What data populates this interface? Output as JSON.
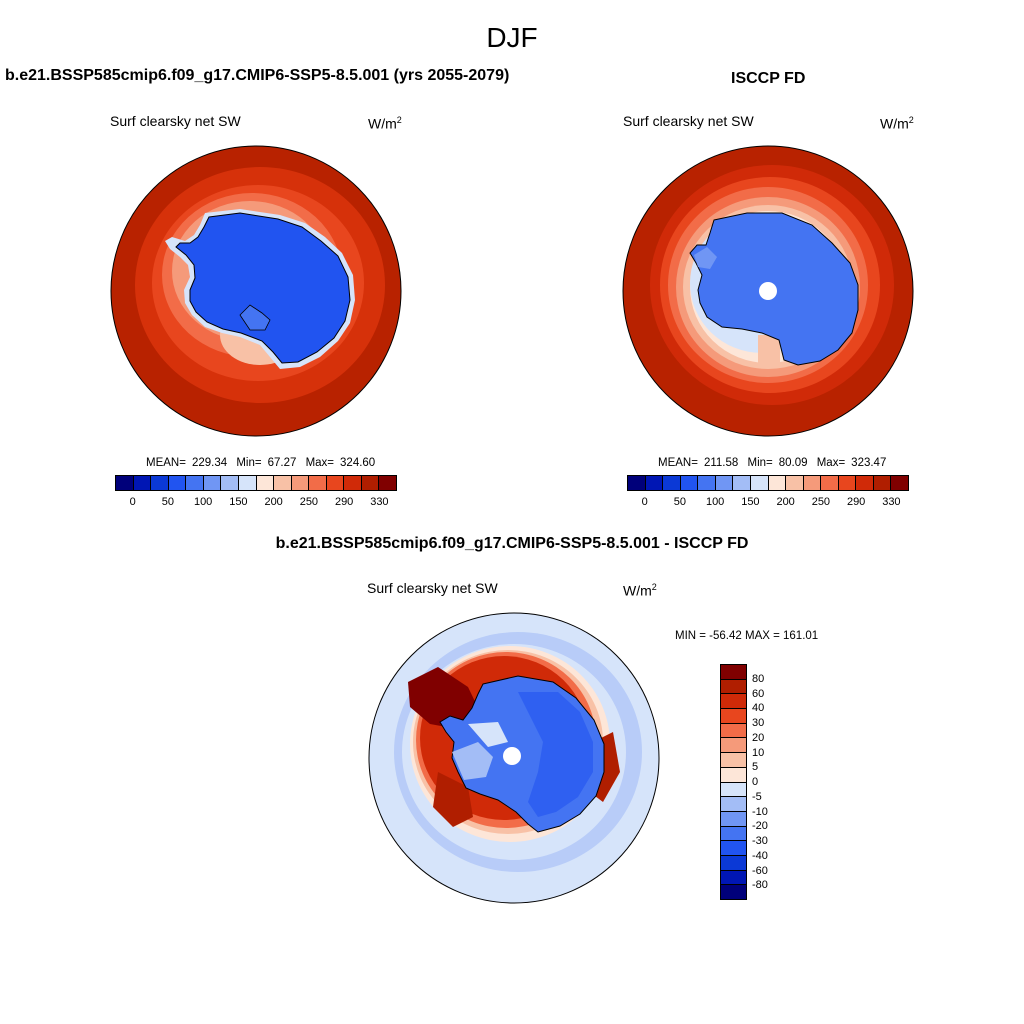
{
  "figure": {
    "season_title": "DJF"
  },
  "panels": [
    {
      "title": "b.e21.BSSP585cmip6.f09_g17.CMIP6-SSP5-8.5.001 (yrs 2055-2079)",
      "variable": "Surf clearsky net SW",
      "units_base": "W/m",
      "units_exp": "2",
      "stats": {
        "mean_label": "MEAN=",
        "mean": "229.34",
        "min_label": "Min=",
        "min": "67.27",
        "max_label": "Max=",
        "max": "324.60"
      }
    },
    {
      "title": "ISCCP FD",
      "variable": "Surf clearsky net SW",
      "units_base": "W/m",
      "units_exp": "2",
      "stats": {
        "mean_label": "MEAN=",
        "mean": "211.58",
        "min_label": "Min=",
        "min": "80.09",
        "max_label": "Max=",
        "max": "323.47"
      }
    },
    {
      "title": "b.e21.BSSP585cmip6.f09_g17.CMIP6-SSP5-8.5.001 - ISCCP FD",
      "variable": "Surf clearsky net SW",
      "units_base": "W/m",
      "units_exp": "2",
      "stats_text": "MIN = -56.42  MAX = 161.01"
    }
  ],
  "chart_data": [
    {
      "type": "heatmap",
      "projection": "south-polar-stereographic",
      "title": "b.e21.BSSP585cmip6.f09_g17.CMIP6-SSP5-8.5.001 (yrs 2055-2079)",
      "variable": "Surf clearsky net SW",
      "units": "W/m2",
      "mean": 229.34,
      "min": 67.27,
      "max": 324.6,
      "colorbar_ticks": [
        0,
        50,
        100,
        150,
        200,
        250,
        290,
        330
      ]
    },
    {
      "type": "heatmap",
      "projection": "south-polar-stereographic",
      "title": "ISCCP FD",
      "variable": "Surf clearsky net SW",
      "units": "W/m2",
      "mean": 211.58,
      "min": 80.09,
      "max": 323.47,
      "colorbar_ticks": [
        0,
        50,
        100,
        150,
        200,
        250,
        290,
        330
      ]
    },
    {
      "type": "heatmap",
      "projection": "south-polar-stereographic",
      "title": "b.e21.BSSP585cmip6.f09_g17.CMIP6-SSP5-8.5.001 - ISCCP FD",
      "variable": "Surf clearsky net SW",
      "units": "W/m2",
      "min": -56.42,
      "max": 161.01,
      "colorbar_levels": [
        80,
        60,
        40,
        30,
        20,
        10,
        5,
        0,
        -5,
        -10,
        -20,
        -30,
        -40,
        -60,
        -80
      ]
    }
  ],
  "colormap": [
    "#00007a",
    "#0016b4",
    "#0b39d6",
    "#2154f0",
    "#4474f2",
    "#7096f4",
    "#a3bdf6",
    "#d6e4fa",
    "#fde6d8",
    "#f8c1a6",
    "#f59a7a",
    "#f26c48",
    "#e8461e",
    "#d02a08",
    "#b01e00",
    "#800000"
  ],
  "diff_colormap": [
    "#800000",
    "#b01e00",
    "#d02a08",
    "#e8461e",
    "#f26c48",
    "#f59a7a",
    "#f8c1a6",
    "#fde6d8",
    "#d6e4fa",
    "#a3bdf6",
    "#7096f4",
    "#4474f2",
    "#2154f0",
    "#0b39d6",
    "#0016b4",
    "#00007a"
  ]
}
